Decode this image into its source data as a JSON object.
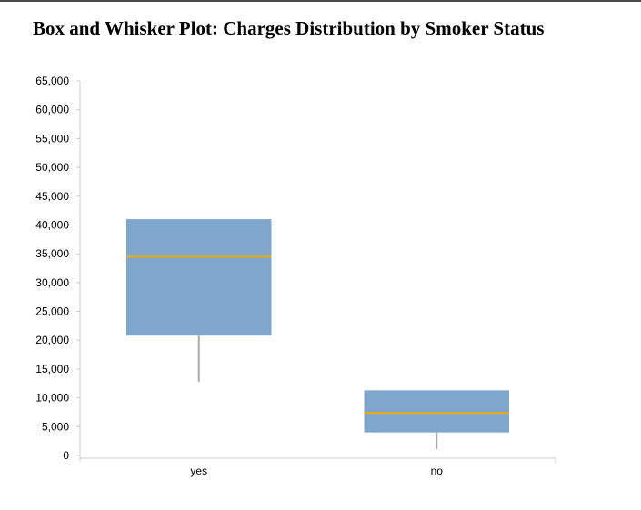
{
  "chart_data": {
    "type": "boxplot",
    "title": "Box and Whisker Plot: Charges Distribution by Smoker Status",
    "xlabel": "",
    "ylabel": "",
    "categories": [
      "yes",
      "no"
    ],
    "boxes": [
      {
        "category": "yes",
        "whisker_low": 12800,
        "q1": 20800,
        "median": 34500,
        "q3": 41000,
        "whisker_high": 41000
      },
      {
        "category": "no",
        "whisker_low": 1100,
        "q1": 4000,
        "median": 7400,
        "q3": 11300,
        "whisker_high": 11300
      }
    ],
    "ylim": [
      0,
      65000
    ],
    "yticks": [
      0,
      5000,
      10000,
      15000,
      20000,
      25000,
      30000,
      35000,
      40000,
      45000,
      50000,
      55000,
      60000,
      65000
    ],
    "ytick_labels": [
      "0",
      "5,000",
      "10,000",
      "15,000",
      "20,000",
      "25,000",
      "30,000",
      "35,000",
      "40,000",
      "45,000",
      "50,000",
      "55,000",
      "60,000",
      "65,000"
    ],
    "grid": false,
    "legend": "none",
    "colors": {
      "box_fill": "#7fa7cb",
      "median": "#f0a818",
      "whisker": "#a9a9a9",
      "axis": "#cccccc"
    }
  }
}
